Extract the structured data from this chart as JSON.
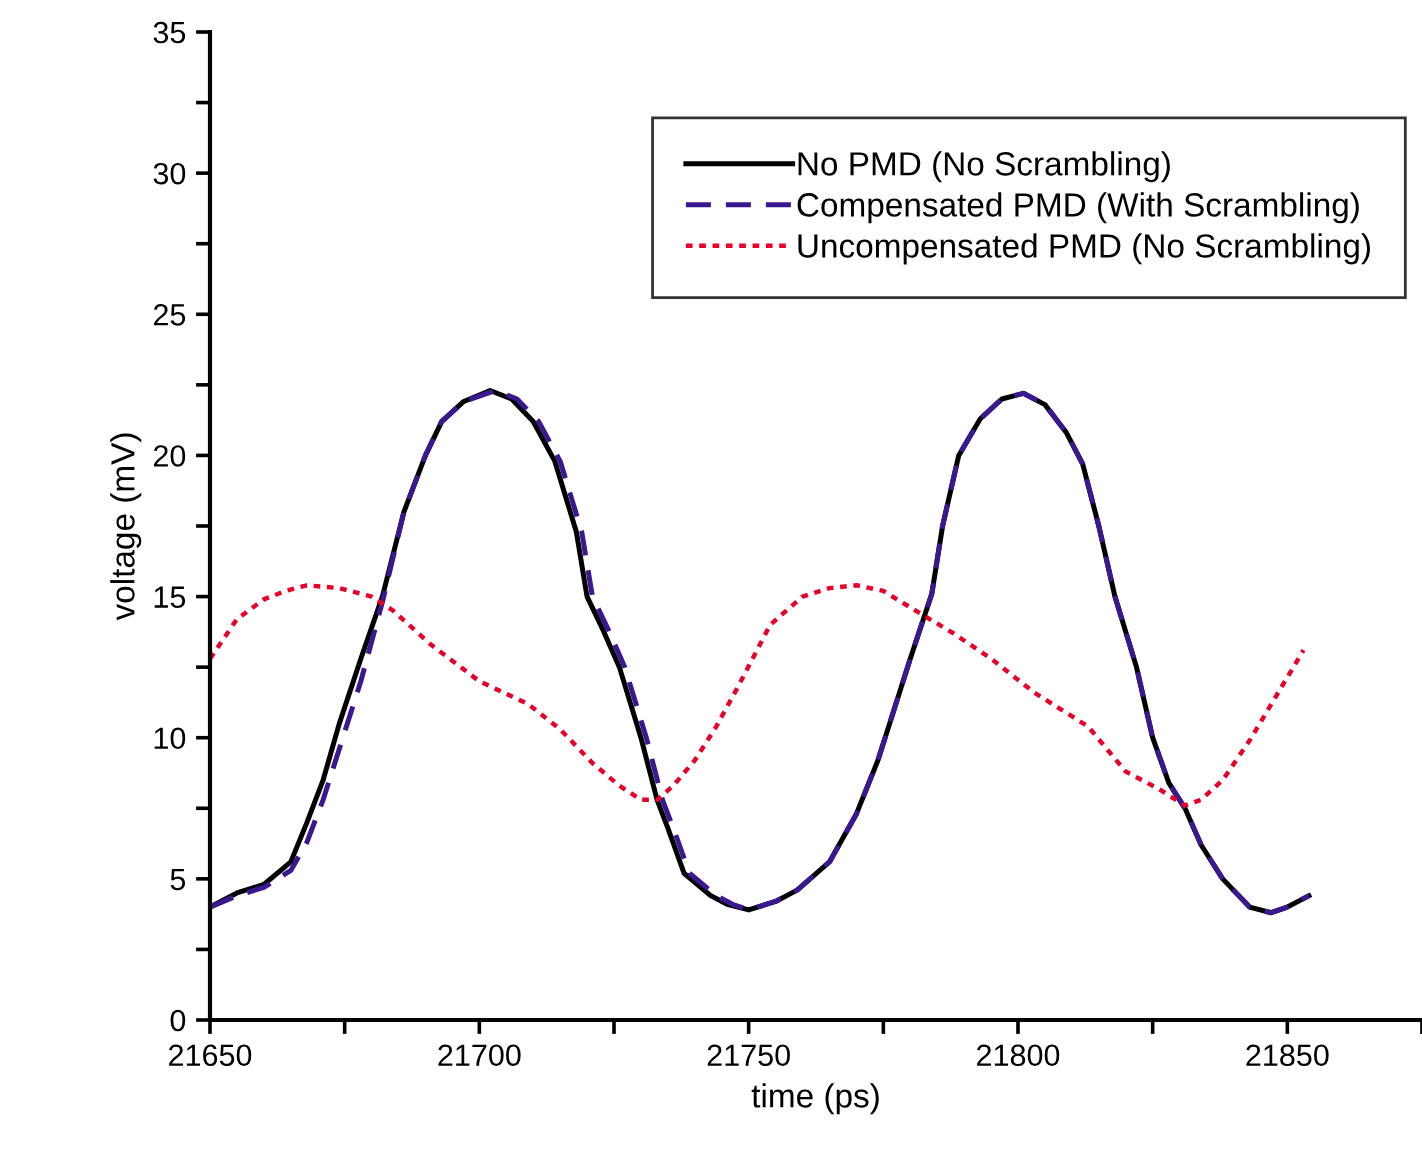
{
  "chart_data": {
    "type": "line",
    "xlabel": "time (ps)",
    "ylabel": "voltage (mV)",
    "xlim": [
      21650,
      21875
    ],
    "ylim": [
      0,
      35
    ],
    "xticks": [
      21650,
      {
        "value": 21675,
        "label": null
      },
      21700,
      {
        "value": 21725,
        "label": null
      },
      21750,
      {
        "value": 21775,
        "label": null
      },
      21800,
      {
        "value": 21825,
        "label": null
      },
      21850,
      {
        "value": 21875,
        "label": null
      }
    ],
    "yticks": [
      0,
      {
        "value": 2.5,
        "label": null
      },
      5,
      {
        "value": 7.5,
        "label": null
      },
      10,
      {
        "value": 12.5,
        "label": null
      },
      15,
      {
        "value": 17.5,
        "label": null
      },
      20,
      {
        "value": 22.5,
        "label": null
      },
      25,
      {
        "value": 27.5,
        "label": null
      },
      30,
      {
        "value": 32.5,
        "label": null
      },
      35
    ],
    "grid": false,
    "legend": "top right",
    "marker": "none",
    "series": [
      {
        "name": "No PMD (No Scrambling)",
        "color": "#000000",
        "line_style": "solid",
        "x": [
          21650,
          21655,
          21660,
          21665,
          21668,
          21671,
          21674,
          21678,
          21682,
          21686,
          21690,
          21693,
          21697,
          21702,
          21706,
          21710,
          21714,
          21718,
          21720,
          21723,
          21726,
          21730,
          21733,
          21735,
          21738,
          21743,
          21746,
          21750,
          21755,
          21759,
          21765,
          21770,
          21774,
          21777,
          21780,
          21784,
          21786,
          21789,
          21793,
          21797,
          21801,
          21805,
          21809,
          21812,
          21815,
          21818,
          21822,
          21825,
          21828,
          21831,
          21834,
          21838,
          21843,
          21847,
          21850,
          21854
        ],
        "values": [
          4.0,
          4.5,
          4.8,
          5.6,
          7.0,
          8.5,
          10.5,
          12.8,
          15.0,
          18.0,
          20.0,
          21.2,
          21.9,
          22.3,
          22.0,
          21.2,
          19.8,
          17.3,
          15.0,
          13.8,
          12.5,
          10.0,
          7.8,
          6.8,
          5.2,
          4.4,
          4.1,
          3.9,
          4.2,
          4.6,
          5.6,
          7.3,
          9.2,
          11.0,
          12.8,
          15.1,
          17.5,
          20.0,
          21.3,
          22.0,
          22.2,
          21.8,
          20.8,
          19.7,
          17.5,
          15.0,
          12.5,
          10.0,
          8.4,
          7.5,
          6.2,
          5.0,
          4.0,
          3.8,
          4.0,
          4.4
        ]
      },
      {
        "name": "Compensated PMD (With Scrambling)",
        "color": "#3a1890",
        "line_style": "dashed",
        "x": [
          21650,
          21655,
          21660,
          21665,
          21668,
          21671,
          21674,
          21678,
          21682,
          21686,
          21690,
          21693,
          21697,
          21703,
          21707,
          21711,
          21715,
          21719,
          21721,
          21724,
          21727,
          21731,
          21734,
          21736,
          21739,
          21744,
          21747,
          21750,
          21755,
          21759,
          21765,
          21770,
          21774,
          21777,
          21780,
          21784,
          21786,
          21789,
          21793,
          21797,
          21801,
          21805,
          21809,
          21812,
          21815,
          21818,
          21822,
          21825,
          21828,
          21831,
          21834,
          21838,
          21843,
          21847,
          21850,
          21854
        ],
        "values": [
          4.0,
          4.4,
          4.7,
          5.3,
          6.3,
          7.8,
          9.6,
          12.0,
          14.8,
          18.0,
          20.0,
          21.2,
          21.9,
          22.3,
          22.0,
          21.2,
          19.8,
          17.3,
          15.0,
          13.8,
          12.5,
          10.0,
          7.8,
          6.8,
          5.2,
          4.4,
          4.1,
          3.9,
          4.2,
          4.6,
          5.6,
          7.3,
          9.2,
          11.0,
          12.8,
          15.1,
          17.5,
          20.0,
          21.3,
          22.0,
          22.2,
          21.8,
          20.8,
          19.7,
          17.5,
          15.0,
          12.5,
          10.0,
          8.4,
          7.5,
          6.2,
          5.0,
          4.0,
          3.8,
          4.0,
          4.4
        ]
      },
      {
        "name": "Uncompensated PMD (No Scrambling)",
        "color": "#e8002a",
        "line_style": "dotted",
        "x": [
          21650,
          21655,
          21660,
          21664,
          21668,
          21674,
          21680,
          21684,
          21691,
          21700,
          21709,
          21715,
          21721,
          21726,
          21730,
          21733,
          21736,
          21740,
          21744,
          21748,
          21754,
          21760,
          21765,
          21770,
          21775,
          21781,
          21788,
          21795,
          21803,
          21813,
          21820,
          21826,
          21831,
          21834,
          21838,
          21843,
          21848,
          21853
        ],
        "values": [
          12.8,
          14.2,
          14.9,
          15.2,
          15.4,
          15.3,
          15.0,
          14.5,
          13.3,
          12.0,
          11.2,
          10.3,
          9.1,
          8.3,
          7.8,
          7.8,
          8.3,
          9.2,
          10.4,
          11.8,
          14.0,
          15.0,
          15.3,
          15.4,
          15.2,
          14.5,
          13.7,
          12.8,
          11.6,
          10.4,
          8.8,
          8.2,
          7.6,
          7.8,
          8.5,
          9.9,
          11.5,
          13.1
        ]
      }
    ]
  }
}
